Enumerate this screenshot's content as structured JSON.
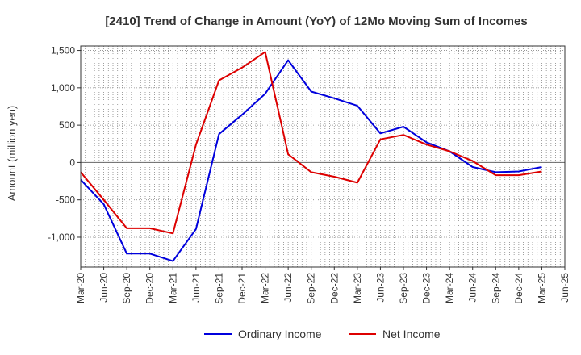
{
  "chart_data": {
    "type": "line",
    "title": "[2410]  Trend of Change in Amount (YoY) of 12Mo Moving Sum of Incomes",
    "xlabel": "",
    "ylabel": "Amount (million yen)",
    "ylim": [
      -1400,
      1560
    ],
    "yticks": [
      -1000,
      -500,
      0,
      500,
      1000,
      1500
    ],
    "ytick_labels": [
      "-1,000",
      "-500",
      "0",
      "500",
      "1,000",
      "1,500"
    ],
    "categories": [
      "Mar-20",
      "Jun-20",
      "Sep-20",
      "Dec-20",
      "Mar-21",
      "Jun-21",
      "Sep-21",
      "Dec-21",
      "Mar-22",
      "Jun-22",
      "Sep-22",
      "Dec-22",
      "Mar-23",
      "Jun-23",
      "Sep-23",
      "Dec-23",
      "Mar-24",
      "Jun-24",
      "Sep-24",
      "Dec-24",
      "Mar-25",
      "Jun-25"
    ],
    "grid": true,
    "legend_position": "bottom",
    "series": [
      {
        "name": "Ordinary Income",
        "color": "#0000dd",
        "values": [
          -230,
          -560,
          -1220,
          -1220,
          -1320,
          -890,
          380,
          640,
          920,
          1370,
          950,
          860,
          760,
          390,
          480,
          270,
          150,
          -60,
          -130,
          -120,
          -60,
          null
        ]
      },
      {
        "name": "Net Income",
        "color": "#dd0000",
        "values": [
          -130,
          -500,
          -880,
          -880,
          -950,
          240,
          1100,
          1270,
          1480,
          110,
          -130,
          -190,
          -270,
          310,
          370,
          240,
          150,
          20,
          -170,
          -170,
          -120,
          null
        ]
      }
    ]
  }
}
